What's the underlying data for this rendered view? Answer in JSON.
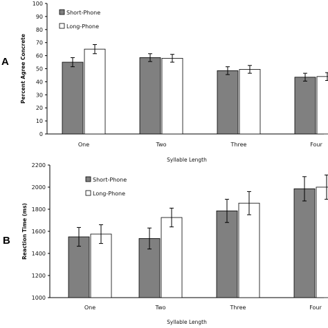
{
  "chart_data": [
    {
      "type": "bar",
      "panel_label": "A",
      "categories": [
        "One",
        "Two",
        "Three",
        "Four"
      ],
      "series": [
        {
          "name": "Short-Phone",
          "values": [
            55,
            58.5,
            48.5,
            43.5
          ],
          "errors": [
            3.5,
            3,
            3,
            3
          ]
        },
        {
          "name": "Long-Phone",
          "values": [
            65,
            58,
            49.5,
            44
          ],
          "errors": [
            3.5,
            3,
            3,
            3
          ]
        }
      ],
      "xlabel": "Syllable Length",
      "ylabel": "Percent Agree Concrete",
      "ylim": [
        0,
        100
      ],
      "yticks": [
        "0",
        "10",
        "20",
        "30",
        "40",
        "50",
        "60",
        "70",
        "80",
        "90",
        "100"
      ],
      "colors": {
        "Short-Phone": "#808080",
        "Long-Phone": "#ffffff"
      },
      "legend_placement": "top-left",
      "grid": false
    },
    {
      "type": "bar",
      "panel_label": "B",
      "categories": [
        "One",
        "Two",
        "Three",
        "Four"
      ],
      "series": [
        {
          "name": "Short-Phone",
          "values": [
            1550,
            1535,
            1785,
            1985
          ],
          "errors": [
            85,
            95,
            105,
            110
          ]
        },
        {
          "name": "Long-Phone",
          "values": [
            1575,
            1725,
            1855,
            2000
          ],
          "errors": [
            85,
            85,
            105,
            110
          ]
        }
      ],
      "xlabel": "Syllable Length",
      "ylabel": "Reaction Time (ms)",
      "ylim": [
        1000,
        2200
      ],
      "yticks": [
        "1000",
        "1200",
        "1400",
        "1600",
        "1800",
        "2000",
        "2200"
      ],
      "colors": {
        "Short-Phone": "#808080",
        "Long-Phone": "#ffffff"
      },
      "legend_placement": "top-left",
      "grid": false
    }
  ]
}
